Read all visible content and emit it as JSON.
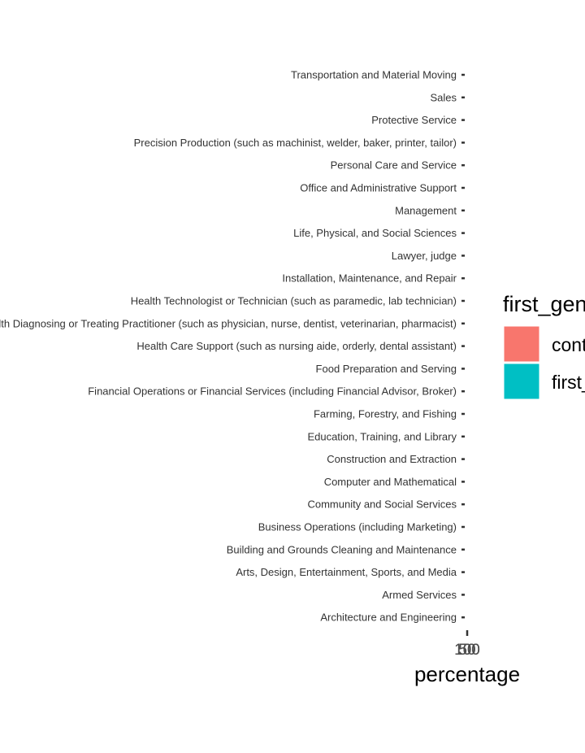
{
  "chart_data": {
    "type": "bar",
    "orientation": "horizontal",
    "categories": [
      "Transportation and Material Moving",
      "Sales",
      "Protective Service",
      "Precision Production (such as machinist, welder, baker, printer, tailor)",
      "Personal Care and Service",
      "Office and Administrative Support",
      "Management",
      "Life, Physical, and Social Sciences",
      "Lawyer, judge",
      "Installation, Maintenance, and Repair",
      "Health Technologist or Technician (such as paramedic, lab technician)",
      "Health Diagnosing or Treating Practitioner (such as physician, nurse, dentist, veterinarian, pharmacist)",
      "Health Care Support (such as nursing aide, orderly, dental assistant)",
      "Food Preparation and Serving",
      "Financial Operations or Financial Services (including Financial Advisor, Broker)",
      "Farming, Forestry, and Fishing",
      "Education, Training, and Library",
      "Construction and Extraction",
      "Computer and Mathematical",
      "Community and Social Services",
      "Business Operations (including Marketing)",
      "Building and Grounds Cleaning and Maintenance",
      "Arts, Design, Entertainment, Sports, and Media",
      "Armed Services",
      "Architecture and Engineering"
    ],
    "x_tick_labels": [
      "100",
      "50",
      "0",
      "50",
      "100"
    ],
    "xlabel": "percentage",
    "legend": {
      "title": "first_gen",
      "position": "right",
      "entries": [
        {
          "label": "continuing_gen",
          "color": "#F8766D"
        },
        {
          "label": "first_gen",
          "color": "#00BFC4"
        }
      ]
    },
    "grid": false
  }
}
